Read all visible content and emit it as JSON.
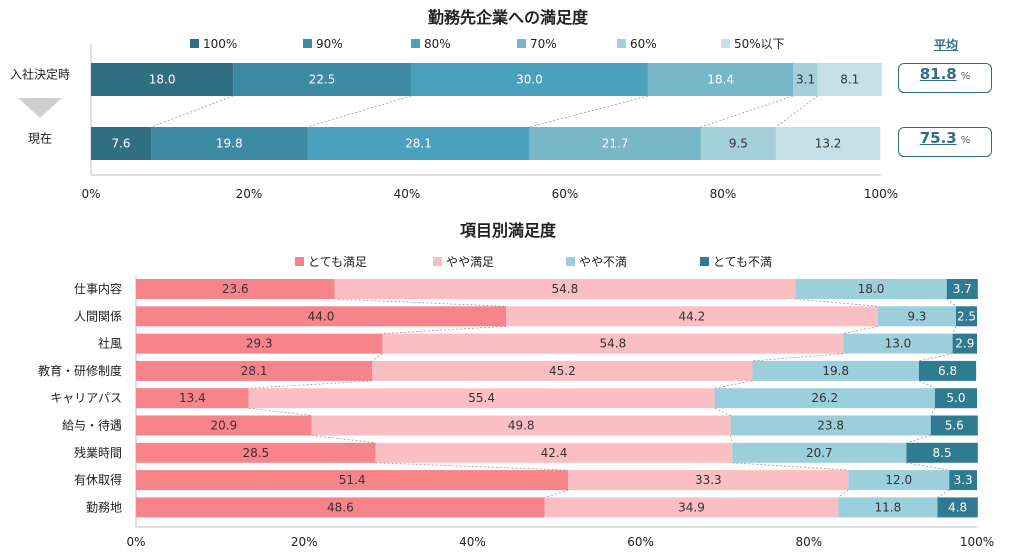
{
  "chart_data": [
    {
      "type": "bar",
      "orientation": "horizontal-stacked",
      "title": "勤務先企業への満足度",
      "categories": [
        "入社決定時",
        "現在"
      ],
      "series": [
        {
          "name": "100%",
          "color": "#2f6e83",
          "values": [
            18.0,
            7.6
          ]
        },
        {
          "name": "90%",
          "color": "#3d8aa5",
          "values": [
            22.5,
            19.8
          ]
        },
        {
          "name": "80%",
          "color": "#4aa0bd",
          "values": [
            30.0,
            28.1
          ]
        },
        {
          "name": "70%",
          "color": "#78b6ca",
          "values": [
            18.4,
            21.7
          ]
        },
        {
          "name": "60%",
          "color": "#a6cfdc",
          "values": [
            3.1,
            9.5
          ]
        },
        {
          "name": "50%以下",
          "color": "#c5e0e8",
          "values": [
            8.1,
            13.2
          ]
        }
      ],
      "average": {
        "label": "平均",
        "values": [
          "81.8",
          "75.3"
        ],
        "unit": "%"
      },
      "xticks": [
        "0%",
        "20%",
        "40%",
        "60%",
        "80%",
        "100%"
      ],
      "xlim": [
        0,
        100
      ]
    },
    {
      "type": "bar",
      "orientation": "horizontal-stacked",
      "title": "項目別満足度",
      "categories": [
        "仕事内容",
        "人間関係",
        "社風",
        "教育・研修制度",
        "キャリアパス",
        "給与・待遇",
        "残業時間",
        "有休取得",
        "勤務地"
      ],
      "series": [
        {
          "name": "とても満足",
          "color": "#f7848b",
          "values": [
            23.6,
            44.0,
            29.3,
            28.1,
            13.4,
            20.9,
            28.5,
            51.4,
            48.6
          ]
        },
        {
          "name": "やや満足",
          "color": "#fbbfc3",
          "values": [
            54.8,
            44.2,
            54.8,
            45.2,
            55.4,
            49.8,
            42.4,
            33.3,
            34.9
          ]
        },
        {
          "name": "やや不満",
          "color": "#9ccfdc",
          "values": [
            18.0,
            9.3,
            13.0,
            19.8,
            26.2,
            23.8,
            20.7,
            12.0,
            11.8
          ]
        },
        {
          "name": "とても不満",
          "color": "#2f7b91",
          "values": [
            3.7,
            2.5,
            2.9,
            6.8,
            5.0,
            5.6,
            8.5,
            3.3,
            4.8
          ]
        }
      ],
      "xticks": [
        "0%",
        "20%",
        "40%",
        "60%",
        "80%",
        "100%"
      ],
      "xlim": [
        0,
        100
      ]
    }
  ]
}
